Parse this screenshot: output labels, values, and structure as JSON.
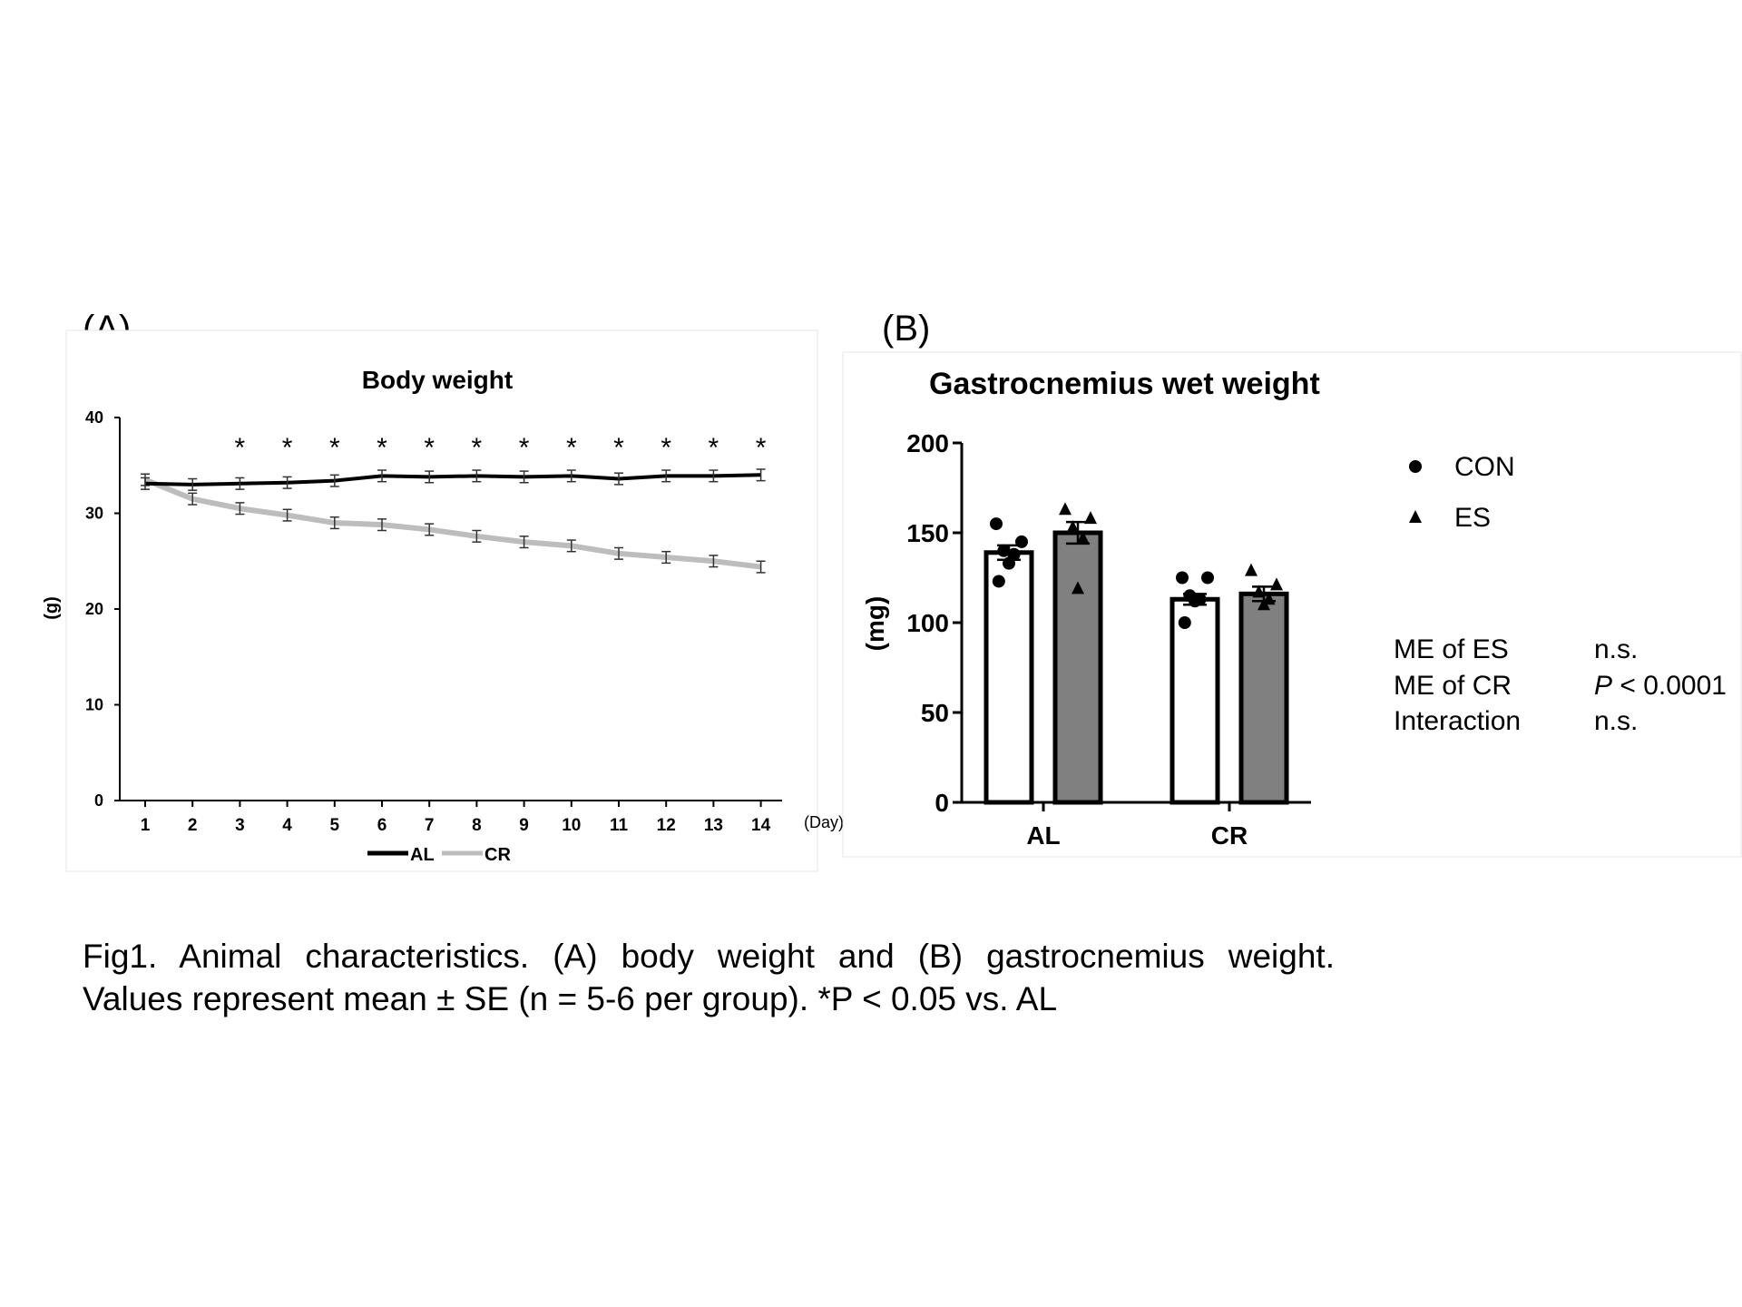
{
  "panel_a": {
    "label": "(A)",
    "chart_data": {
      "type": "line",
      "title": "Body weight",
      "ylabel": "(g)",
      "xlabel": "(Day)",
      "ylim": [
        0,
        40
      ],
      "yticks": [
        0,
        10,
        20,
        30,
        40
      ],
      "x": [
        1,
        2,
        3,
        4,
        5,
        6,
        7,
        8,
        9,
        10,
        11,
        12,
        13,
        14
      ],
      "series": [
        {
          "name": "AL",
          "color": "#000000",
          "values": [
            33.1,
            33.0,
            33.1,
            33.2,
            33.4,
            33.9,
            33.8,
            33.9,
            33.8,
            33.9,
            33.6,
            33.9,
            33.9,
            34.0
          ],
          "se": [
            0.6,
            0.6,
            0.6,
            0.6,
            0.6,
            0.6,
            0.6,
            0.6,
            0.6,
            0.6,
            0.6,
            0.6,
            0.6,
            0.6
          ]
        },
        {
          "name": "CR",
          "color": "#bdbdbd",
          "values": [
            33.5,
            31.5,
            30.5,
            29.8,
            29.0,
            28.8,
            28.3,
            27.6,
            27.0,
            26.6,
            25.8,
            25.4,
            25.0,
            24.4
          ],
          "se": [
            0.6,
            0.6,
            0.6,
            0.6,
            0.6,
            0.6,
            0.6,
            0.6,
            0.6,
            0.6,
            0.6,
            0.6,
            0.6,
            0.6
          ]
        }
      ],
      "significance": {
        "symbol": "*",
        "days": [
          3,
          4,
          5,
          6,
          7,
          8,
          9,
          10,
          11,
          12,
          13,
          14
        ]
      },
      "legend": "bottom"
    }
  },
  "panel_b": {
    "label": "(B)",
    "chart_data": {
      "type": "bar",
      "title": "Gastrocnemius wet weight",
      "ylabel": "(mg)",
      "ylim": [
        0,
        200
      ],
      "yticks": [
        0,
        50,
        100,
        150,
        200
      ],
      "categories": [
        "AL",
        "CR"
      ],
      "series": [
        {
          "name": "CON",
          "marker": "circle",
          "fill": "#ffffff",
          "values": [
            139,
            113
          ],
          "se": [
            4,
            3
          ],
          "points": [
            [
              155,
              145,
              140,
              138,
              133,
              123
            ],
            [
              125,
              125,
              115,
              113,
              112,
              100
            ]
          ]
        },
        {
          "name": "ES",
          "marker": "triangle",
          "fill": "#808080",
          "values": [
            150,
            116
          ],
          "se": [
            6,
            4
          ],
          "points": [
            [
              163,
              158,
              153,
              147,
              119
            ],
            [
              129,
              121,
              117,
              113,
              110
            ]
          ]
        }
      ],
      "legend": "right",
      "stats": [
        {
          "label": "ME of ES",
          "value": "n.s."
        },
        {
          "label": "ME of CR",
          "p": "P",
          "value": " < 0.0001"
        },
        {
          "label": "Interaction",
          "value": "n.s."
        }
      ]
    }
  },
  "caption": {
    "line1": "Fig1. Animal characteristics. (A) body weight and (B) gastrocnemius weight.",
    "line2": "Values represent mean ± SE (n = 5-6 per group). *P < 0.05 vs. AL"
  }
}
